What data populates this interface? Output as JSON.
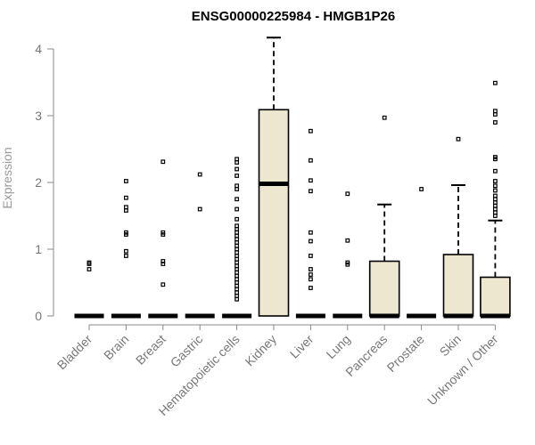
{
  "chart_data": {
    "type": "boxplot",
    "title": "ENSG00000225984 - HMGB1P26",
    "ylabel": "Expression",
    "xlabel": "",
    "ylim": [
      0,
      4.2
    ],
    "yticks": [
      0,
      1,
      2,
      3,
      4
    ],
    "box_fill": "#ede7d0",
    "categories": [
      "Bladder",
      "Brain",
      "Breast",
      "Gastric",
      "Hematopoietic cells",
      "Kidney",
      "Liver",
      "Lung",
      "Pancreas",
      "Prostate",
      "Skin",
      "Unknown / Other"
    ],
    "boxes": [
      {
        "q1": 0,
        "median": 0,
        "q3": 0,
        "whisker_low": 0,
        "whisker_high": 0,
        "outliers": [
          0.7,
          0.78,
          0.8
        ]
      },
      {
        "q1": 0,
        "median": 0,
        "q3": 0,
        "whisker_low": 0,
        "whisker_high": 0,
        "outliers": [
          0.9,
          0.97,
          1.22,
          1.25,
          1.58,
          1.63,
          1.77,
          2.02
        ]
      },
      {
        "q1": 0,
        "median": 0,
        "q3": 0,
        "whisker_low": 0,
        "whisker_high": 0,
        "outliers": [
          0.47,
          0.78,
          0.82,
          1.22,
          1.25,
          2.31
        ]
      },
      {
        "q1": 0,
        "median": 0,
        "q3": 0,
        "whisker_low": 0,
        "whisker_high": 0,
        "outliers": [
          1.6,
          2.12
        ]
      },
      {
        "q1": 0,
        "median": 0,
        "q3": 0,
        "whisker_low": 0,
        "whisker_high": 0,
        "outliers": [
          0.25,
          0.3,
          0.35,
          0.4,
          0.45,
          0.5,
          0.55,
          0.6,
          0.65,
          0.7,
          0.75,
          0.8,
          0.85,
          0.9,
          0.95,
          1.0,
          1.05,
          1.1,
          1.15,
          1.2,
          1.25,
          1.3,
          1.35,
          1.45,
          1.6,
          1.75,
          1.9,
          1.95,
          2.1,
          2.2,
          2.3,
          2.35
        ]
      },
      {
        "q1": 0,
        "median": 1.98,
        "q3": 3.09,
        "whisker_low": 0,
        "whisker_high": 4.17,
        "outliers": []
      },
      {
        "q1": 0,
        "median": 0,
        "q3": 0,
        "whisker_low": 0,
        "whisker_high": 0,
        "outliers": [
          0.42,
          0.55,
          0.62,
          0.7,
          0.9,
          1.12,
          1.25,
          1.87,
          2.03,
          2.33,
          2.77
        ]
      },
      {
        "q1": 0,
        "median": 0,
        "q3": 0,
        "whisker_low": 0,
        "whisker_high": 0,
        "outliers": [
          0.77,
          0.8,
          1.13,
          1.83
        ]
      },
      {
        "q1": 0,
        "median": 0,
        "q3": 0.82,
        "whisker_low": 0,
        "whisker_high": 1.67,
        "outliers": [
          2.97
        ]
      },
      {
        "q1": 0,
        "median": 0,
        "q3": 0,
        "whisker_low": 0,
        "whisker_high": 0,
        "outliers": [
          1.9
        ]
      },
      {
        "q1": 0,
        "median": 0,
        "q3": 0.92,
        "whisker_low": 0,
        "whisker_high": 1.96,
        "outliers": [
          2.65
        ]
      },
      {
        "q1": 0,
        "median": 0,
        "q3": 0.58,
        "whisker_low": 0,
        "whisker_high": 1.43,
        "outliers": [
          1.5,
          1.55,
          1.6,
          1.65,
          1.7,
          1.75,
          1.8,
          1.88,
          1.95,
          2.02,
          2.17,
          2.35,
          2.38,
          2.9,
          3.02,
          3.07,
          3.49
        ]
      }
    ]
  }
}
